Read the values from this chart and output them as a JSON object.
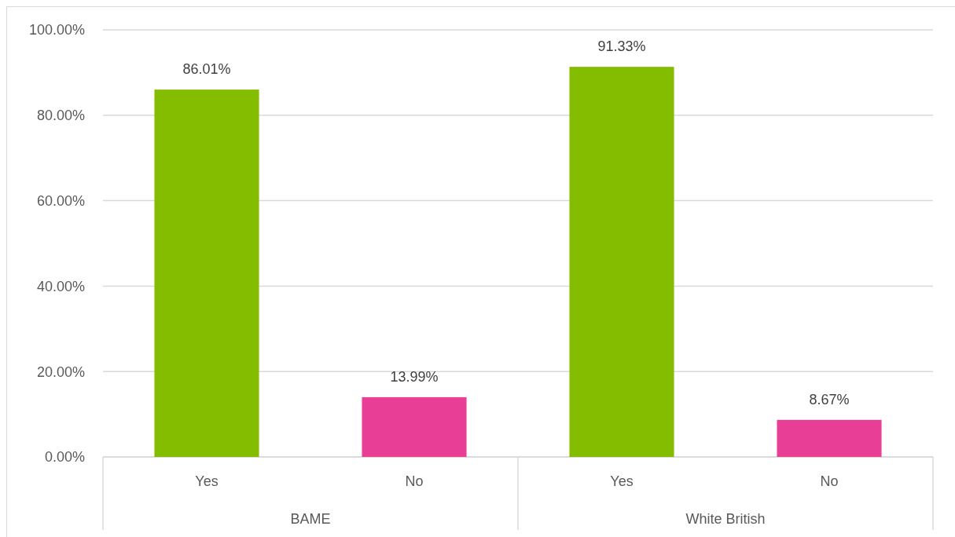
{
  "chart_data": {
    "type": "bar",
    "categories": [
      "BAME",
      "White British"
    ],
    "series": [
      {
        "name": "Yes",
        "color": "#84bc00",
        "values": [
          86.01,
          91.33
        ],
        "value_labels": [
          "86.01%",
          "91.33%"
        ]
      },
      {
        "name": "No",
        "color": "#e83e96",
        "values": [
          13.99,
          8.67
        ],
        "value_labels": [
          "13.99%",
          "8.67%"
        ]
      }
    ],
    "ylim": [
      0,
      100
    ],
    "yticks": [
      {
        "value": 0,
        "label": "0.00%"
      },
      {
        "value": 20,
        "label": "20.00%"
      },
      {
        "value": 40,
        "label": "40.00%"
      },
      {
        "value": 60,
        "label": "60.00%"
      },
      {
        "value": 80,
        "label": "80.00%"
      },
      {
        "value": 100,
        "label": "100.00%"
      }
    ],
    "grid": "y"
  }
}
